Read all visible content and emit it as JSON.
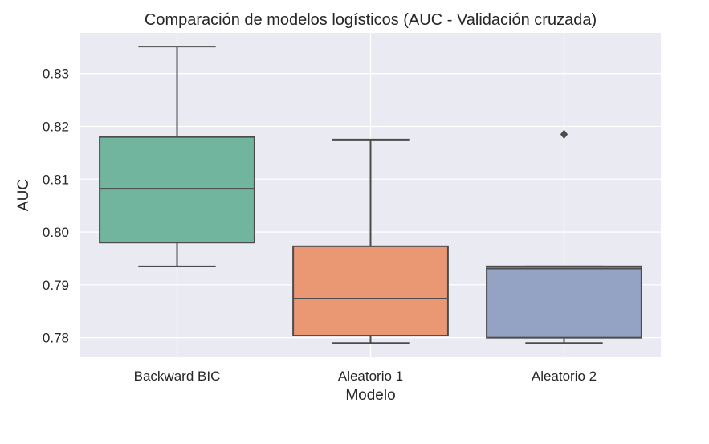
{
  "chart_data": {
    "type": "box",
    "title": "Comparación de modelos logísticos (AUC - Validación cruzada)",
    "xlabel": "Modelo",
    "ylabel": "AUC",
    "ylim": [
      0.7763,
      0.8377
    ],
    "yticks": [
      0.78,
      0.79,
      0.8,
      0.81,
      0.82,
      0.83
    ],
    "ytick_labels": [
      "0.78",
      "0.79",
      "0.80",
      "0.81",
      "0.82",
      "0.83"
    ],
    "grid": true,
    "categories": [
      "Backward BIC",
      "Aleatorio 1",
      "Aleatorio 2"
    ],
    "boxes": [
      {
        "category": "Backward BIC",
        "whisker_low": 0.7935,
        "q1": 0.798,
        "median": 0.8082,
        "q3": 0.818,
        "whisker_high": 0.8351,
        "outliers": [],
        "color": "#72b59f"
      },
      {
        "category": "Aleatorio 1",
        "whisker_low": 0.779,
        "q1": 0.7804,
        "median": 0.7874,
        "q3": 0.7973,
        "whisker_high": 0.8175,
        "outliers": [],
        "color": "#ea9774"
      },
      {
        "category": "Aleatorio 2",
        "whisker_low": 0.779,
        "q1": 0.78,
        "median": 0.7931,
        "q3": 0.7935,
        "whisker_high": 0.7935,
        "outliers": [
          0.8185
        ],
        "color": "#94a3c3"
      }
    ],
    "colors": {
      "background": "#eaeaf2",
      "grid": "#ffffff",
      "line": "#4c4c4c",
      "text": "#262626"
    }
  }
}
